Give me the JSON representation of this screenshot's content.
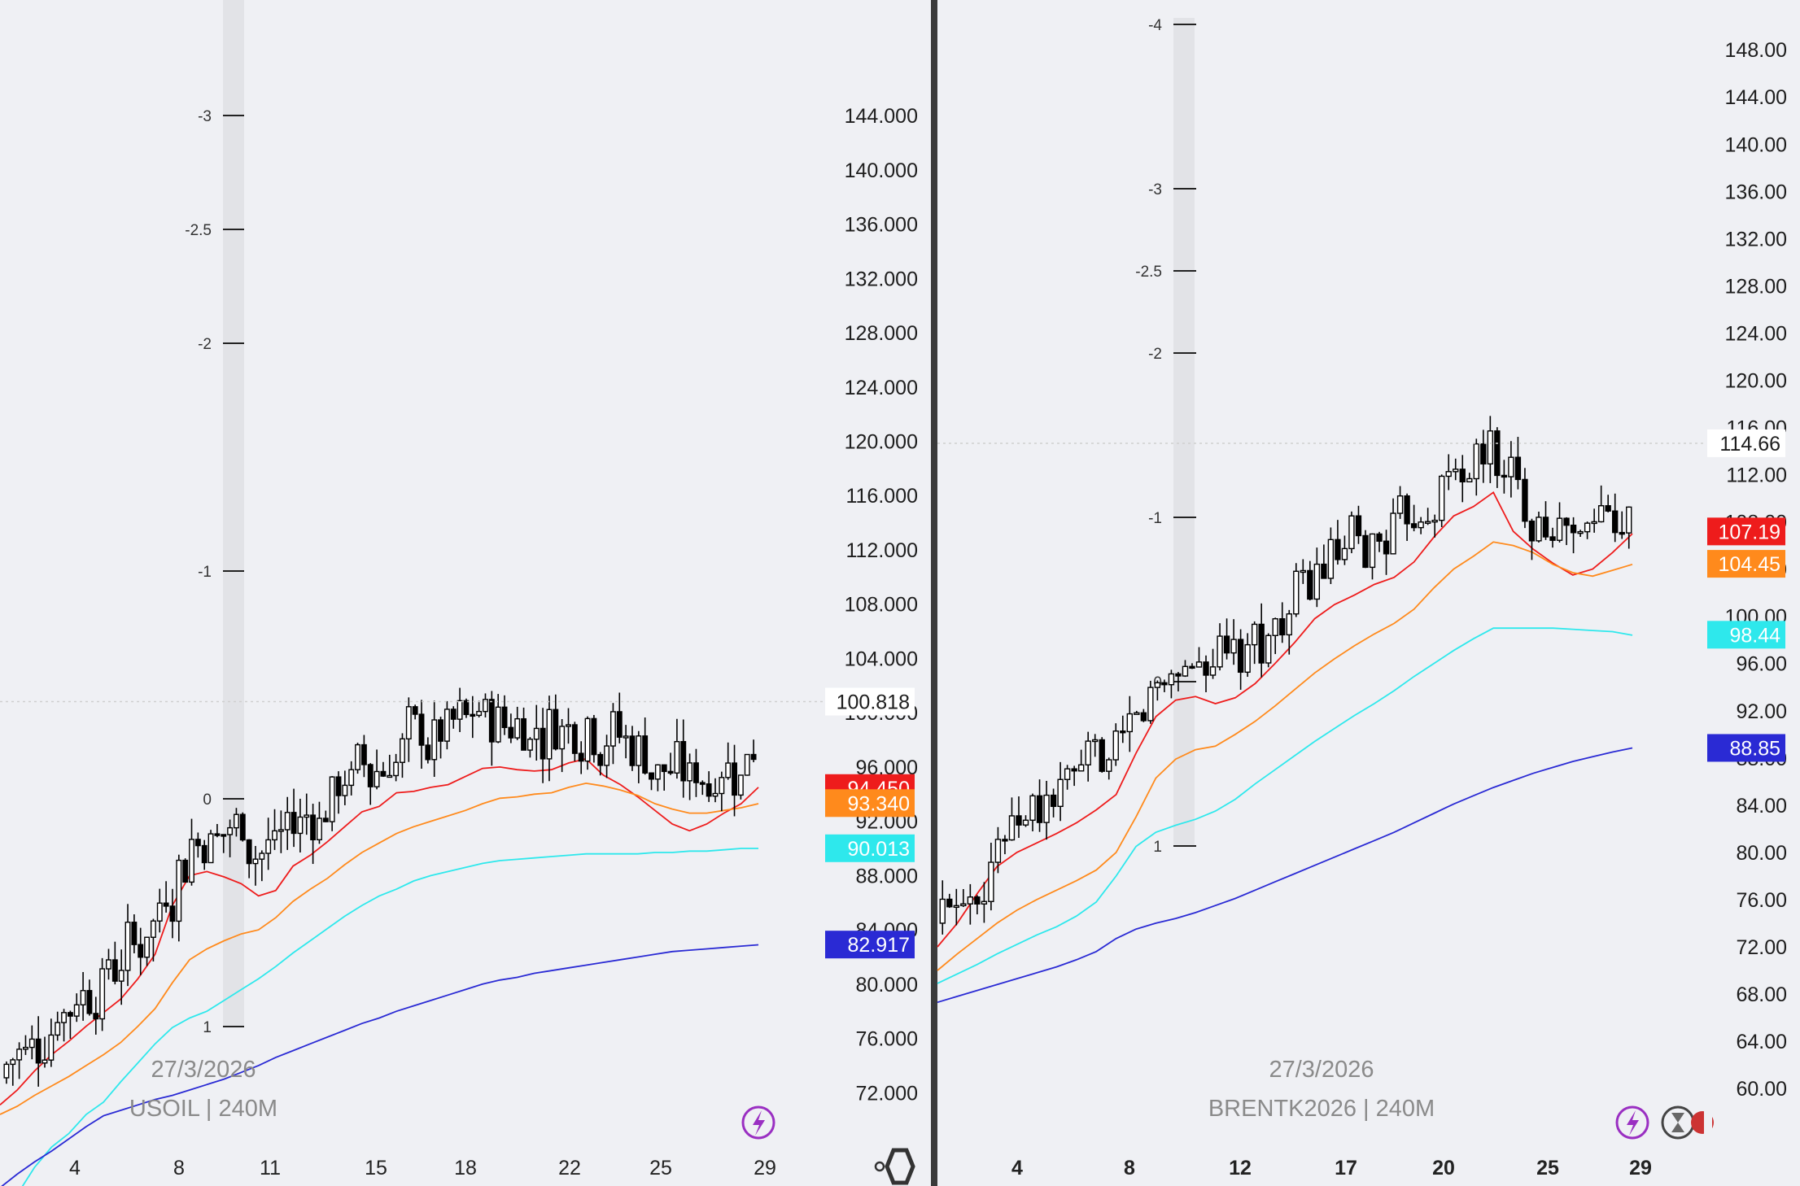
{
  "chart_data": [
    {
      "type": "candlestick",
      "symbol_label": "USOIL | 240M",
      "date_label": "27/3/2026",
      "y_axis": {
        "range": [
          70.4,
          151.2
        ],
        "tick_values": [
          72,
          76,
          80,
          84,
          88,
          92,
          96,
          100,
          104,
          108,
          112,
          116,
          120,
          124,
          128,
          132,
          136,
          140,
          144
        ],
        "tick_labels": [
          "72.000",
          "76.000",
          "80.000",
          "84.000",
          "88.000",
          "92.000",
          "96.000",
          "100.000",
          "104.000",
          "108.000",
          "112.000",
          "116.000",
          "120.000",
          "124.000",
          "128.000",
          "132.000",
          "136.000",
          "140.000",
          "144.000"
        ]
      },
      "x_axis": {
        "tick_labels": [
          "4",
          "8",
          "11",
          "15",
          "18",
          "22",
          "25",
          "29"
        ],
        "bold": false
      },
      "volume_scale": {
        "tick_labels": [
          "-3",
          "-2.5",
          "-2",
          "-1",
          "0",
          "1"
        ],
        "tick_values": [
          -3,
          -2.5,
          -2,
          -1,
          0,
          1
        ]
      },
      "current_price": {
        "label": "100.818",
        "value": 100.818
      },
      "moving_averages": [
        {
          "label": "94.450",
          "value": 94.45,
          "color": "#ee1c1c",
          "values": [
            71.1,
            72.2,
            73.6,
            74.8,
            75.8,
            76.9,
            77.9,
            78.9,
            80.4,
            82.2,
            85.8,
            88.0,
            88.3,
            87.9,
            87.4,
            86.5,
            86.9,
            88.7,
            89.5,
            90.5,
            91.6,
            92.7,
            93.1,
            94.1,
            94.2,
            94.5,
            94.7,
            95.3,
            95.9,
            96.0,
            95.8,
            95.7,
            95.8,
            96.3,
            96.6,
            95.4,
            94.7,
            93.8,
            92.8,
            91.8,
            91.3,
            91.8,
            92.6,
            93.3,
            94.5
          ]
        },
        {
          "label": "93.340",
          "value": 93.34,
          "color": "#ff8a1c",
          "values": [
            70.4,
            71.0,
            71.8,
            72.5,
            73.2,
            74.0,
            74.8,
            75.7,
            76.9,
            78.2,
            80.1,
            81.8,
            82.6,
            83.2,
            83.7,
            84.0,
            84.9,
            86.1,
            87.0,
            87.8,
            88.8,
            89.7,
            90.4,
            91.1,
            91.6,
            92.0,
            92.4,
            92.8,
            93.3,
            93.7,
            93.8,
            94.0,
            94.1,
            94.5,
            94.8,
            94.6,
            94.3,
            93.9,
            93.3,
            92.9,
            92.6,
            92.6,
            92.8,
            93.0,
            93.3
          ]
        },
        {
          "label": "90.013",
          "value": 90.013,
          "color": "#2ee8ec",
          "values": [
            62.0,
            64.5,
            66.5,
            68.0,
            69.0,
            70.4,
            71.3,
            72.8,
            74.2,
            75.6,
            76.8,
            77.5,
            78.0,
            78.8,
            79.6,
            80.4,
            81.3,
            82.3,
            83.2,
            84.1,
            85.0,
            85.8,
            86.5,
            87.0,
            87.6,
            88.0,
            88.3,
            88.6,
            88.9,
            89.1,
            89.2,
            89.3,
            89.4,
            89.5,
            89.6,
            89.6,
            89.6,
            89.6,
            89.7,
            89.7,
            89.8,
            89.8,
            89.9,
            90.0,
            90.0
          ]
        },
        {
          "label": "82.917",
          "value": 82.917,
          "color": "#2a2ad4",
          "values": [
            65.0,
            66.0,
            66.9,
            67.7,
            68.6,
            69.5,
            70.3,
            70.7,
            71.1,
            71.5,
            71.8,
            72.2,
            72.6,
            73.0,
            73.5,
            74.0,
            74.6,
            75.1,
            75.6,
            76.1,
            76.6,
            77.1,
            77.5,
            78.0,
            78.4,
            78.8,
            79.2,
            79.6,
            80.0,
            80.3,
            80.5,
            80.8,
            81.0,
            81.2,
            81.4,
            81.6,
            81.8,
            82.0,
            82.2,
            82.4,
            82.5,
            82.6,
            82.7,
            82.8,
            82.9
          ]
        }
      ]
    },
    {
      "type": "candlestick",
      "symbol_label": "BRENTK2026 | 240M",
      "date_label": "27/3/2026",
      "y_axis": {
        "range": [
          57.8,
          150.7
        ],
        "tick_values": [
          60,
          64,
          68,
          72,
          76,
          80,
          84,
          88,
          92,
          96,
          100,
          104,
          108,
          112,
          116,
          120,
          124,
          128,
          132,
          136,
          140,
          144,
          148
        ],
        "tick_labels": [
          "60.00",
          "64.00",
          "68.00",
          "72.00",
          "76.00",
          "80.00",
          "84.00",
          "88.00",
          "92.00",
          "96.00",
          "100.00",
          "104.00",
          "108.00",
          "112.00",
          "116.00",
          "120.00",
          "124.00",
          "128.00",
          "132.00",
          "136.00",
          "140.00",
          "144.00",
          "148.00"
        ]
      },
      "x_axis": {
        "tick_labels": [
          "4",
          "8",
          "12",
          "17",
          "20",
          "25",
          "29"
        ],
        "bold": true
      },
      "volume_scale": {
        "tick_labels": [
          "-4",
          "-3",
          "-2.5",
          "-2",
          "-1",
          "0",
          "1"
        ],
        "tick_values": [
          -4,
          -3,
          -2.5,
          -2,
          -1,
          0,
          1
        ]
      },
      "current_price": {
        "label": "114.66",
        "value": 114.66
      },
      "moving_averages": [
        {
          "label": "107.19",
          "value": 107.19,
          "color": "#ee1c1c",
          "values": [
            72.0,
            74.0,
            76.5,
            78.8,
            80.0,
            80.8,
            81.6,
            82.5,
            83.6,
            84.9,
            88.4,
            91.5,
            92.9,
            93.2,
            92.6,
            93.1,
            94.3,
            96.0,
            97.8,
            99.8,
            101.0,
            101.8,
            102.7,
            103.3,
            104.6,
            106.7,
            108.5,
            109.3,
            110.5,
            107.2,
            105.7,
            104.5,
            103.5,
            104.0,
            105.4,
            107.0
          ]
        },
        {
          "label": "104.45",
          "value": 104.45,
          "color": "#ff8a1c",
          "values": [
            70.0,
            71.4,
            72.7,
            74.0,
            75.1,
            76.0,
            76.8,
            77.6,
            78.5,
            80.0,
            83.0,
            86.3,
            87.9,
            88.7,
            89.0,
            90.0,
            91.1,
            92.4,
            93.8,
            95.2,
            96.4,
            97.5,
            98.5,
            99.4,
            100.6,
            102.4,
            104.0,
            105.1,
            106.3,
            106.0,
            105.4,
            104.4,
            103.7,
            103.4,
            103.9,
            104.4
          ]
        },
        {
          "label": "98.44",
          "value": 98.44,
          "color": "#2ee8ec",
          "values": [
            68.9,
            69.7,
            70.5,
            71.4,
            72.2,
            73.0,
            73.7,
            74.6,
            75.8,
            78.0,
            80.5,
            81.7,
            82.3,
            82.8,
            83.5,
            84.5,
            85.8,
            87.0,
            88.2,
            89.4,
            90.5,
            91.6,
            92.6,
            93.7,
            94.9,
            96.0,
            97.1,
            98.1,
            99.0,
            99.0,
            99.0,
            99.0,
            98.9,
            98.8,
            98.7,
            98.4
          ]
        },
        {
          "label": "88.85",
          "value": 88.85,
          "color": "#2a2ad4",
          "values": [
            67.3,
            67.8,
            68.3,
            68.8,
            69.3,
            69.8,
            70.3,
            70.9,
            71.6,
            72.7,
            73.5,
            74.0,
            74.4,
            74.9,
            75.5,
            76.1,
            76.8,
            77.5,
            78.2,
            78.9,
            79.6,
            80.3,
            81.0,
            81.7,
            82.5,
            83.3,
            84.1,
            84.8,
            85.5,
            86.1,
            86.7,
            87.2,
            87.7,
            88.1,
            88.5,
            88.85
          ]
        }
      ]
    }
  ]
}
